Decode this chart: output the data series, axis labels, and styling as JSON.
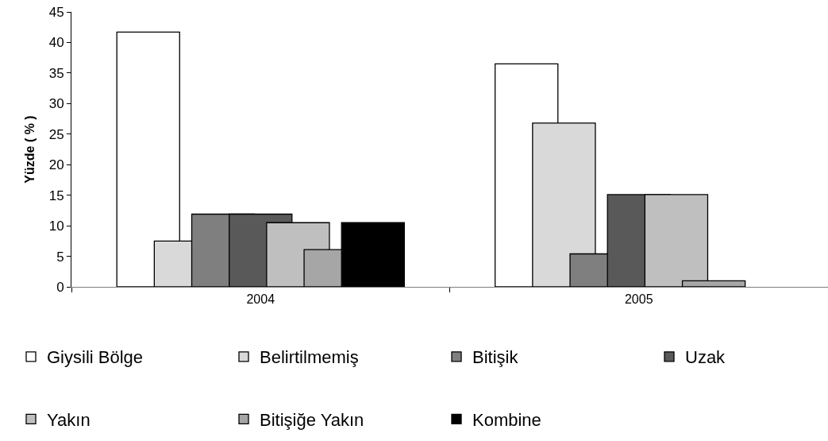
{
  "chart_data": {
    "type": "bar",
    "categories": [
      "2004",
      "2005"
    ],
    "ylabel": "Yüzde ( % )",
    "ylim": [
      0,
      45
    ],
    "yticks": [
      0,
      5,
      10,
      15,
      20,
      25,
      30,
      35,
      40,
      45
    ],
    "legend": "bottom",
    "series": [
      {
        "name": "Giysili Bölge",
        "color": "#ffffff",
        "values": [
          41.7,
          36.5
        ]
      },
      {
        "name": "Belirtilmemiş",
        "color": "#d9d9d9",
        "values": [
          7.5,
          26.8
        ]
      },
      {
        "name": "Bitişik",
        "color": "#7f7f7f",
        "values": [
          11.9,
          5.4
        ]
      },
      {
        "name": "Uzak",
        "color": "#595959",
        "values": [
          11.9,
          15.1
        ]
      },
      {
        "name": "Yakın",
        "color": "#bfbfbf",
        "values": [
          10.5,
          15.1
        ]
      },
      {
        "name": "Bitişiğe Yakın",
        "color": "#a6a6a6",
        "values": [
          6.1,
          1.0
        ]
      },
      {
        "name": "Kombine",
        "color": "#000000",
        "values": [
          10.5,
          null
        ]
      }
    ]
  }
}
